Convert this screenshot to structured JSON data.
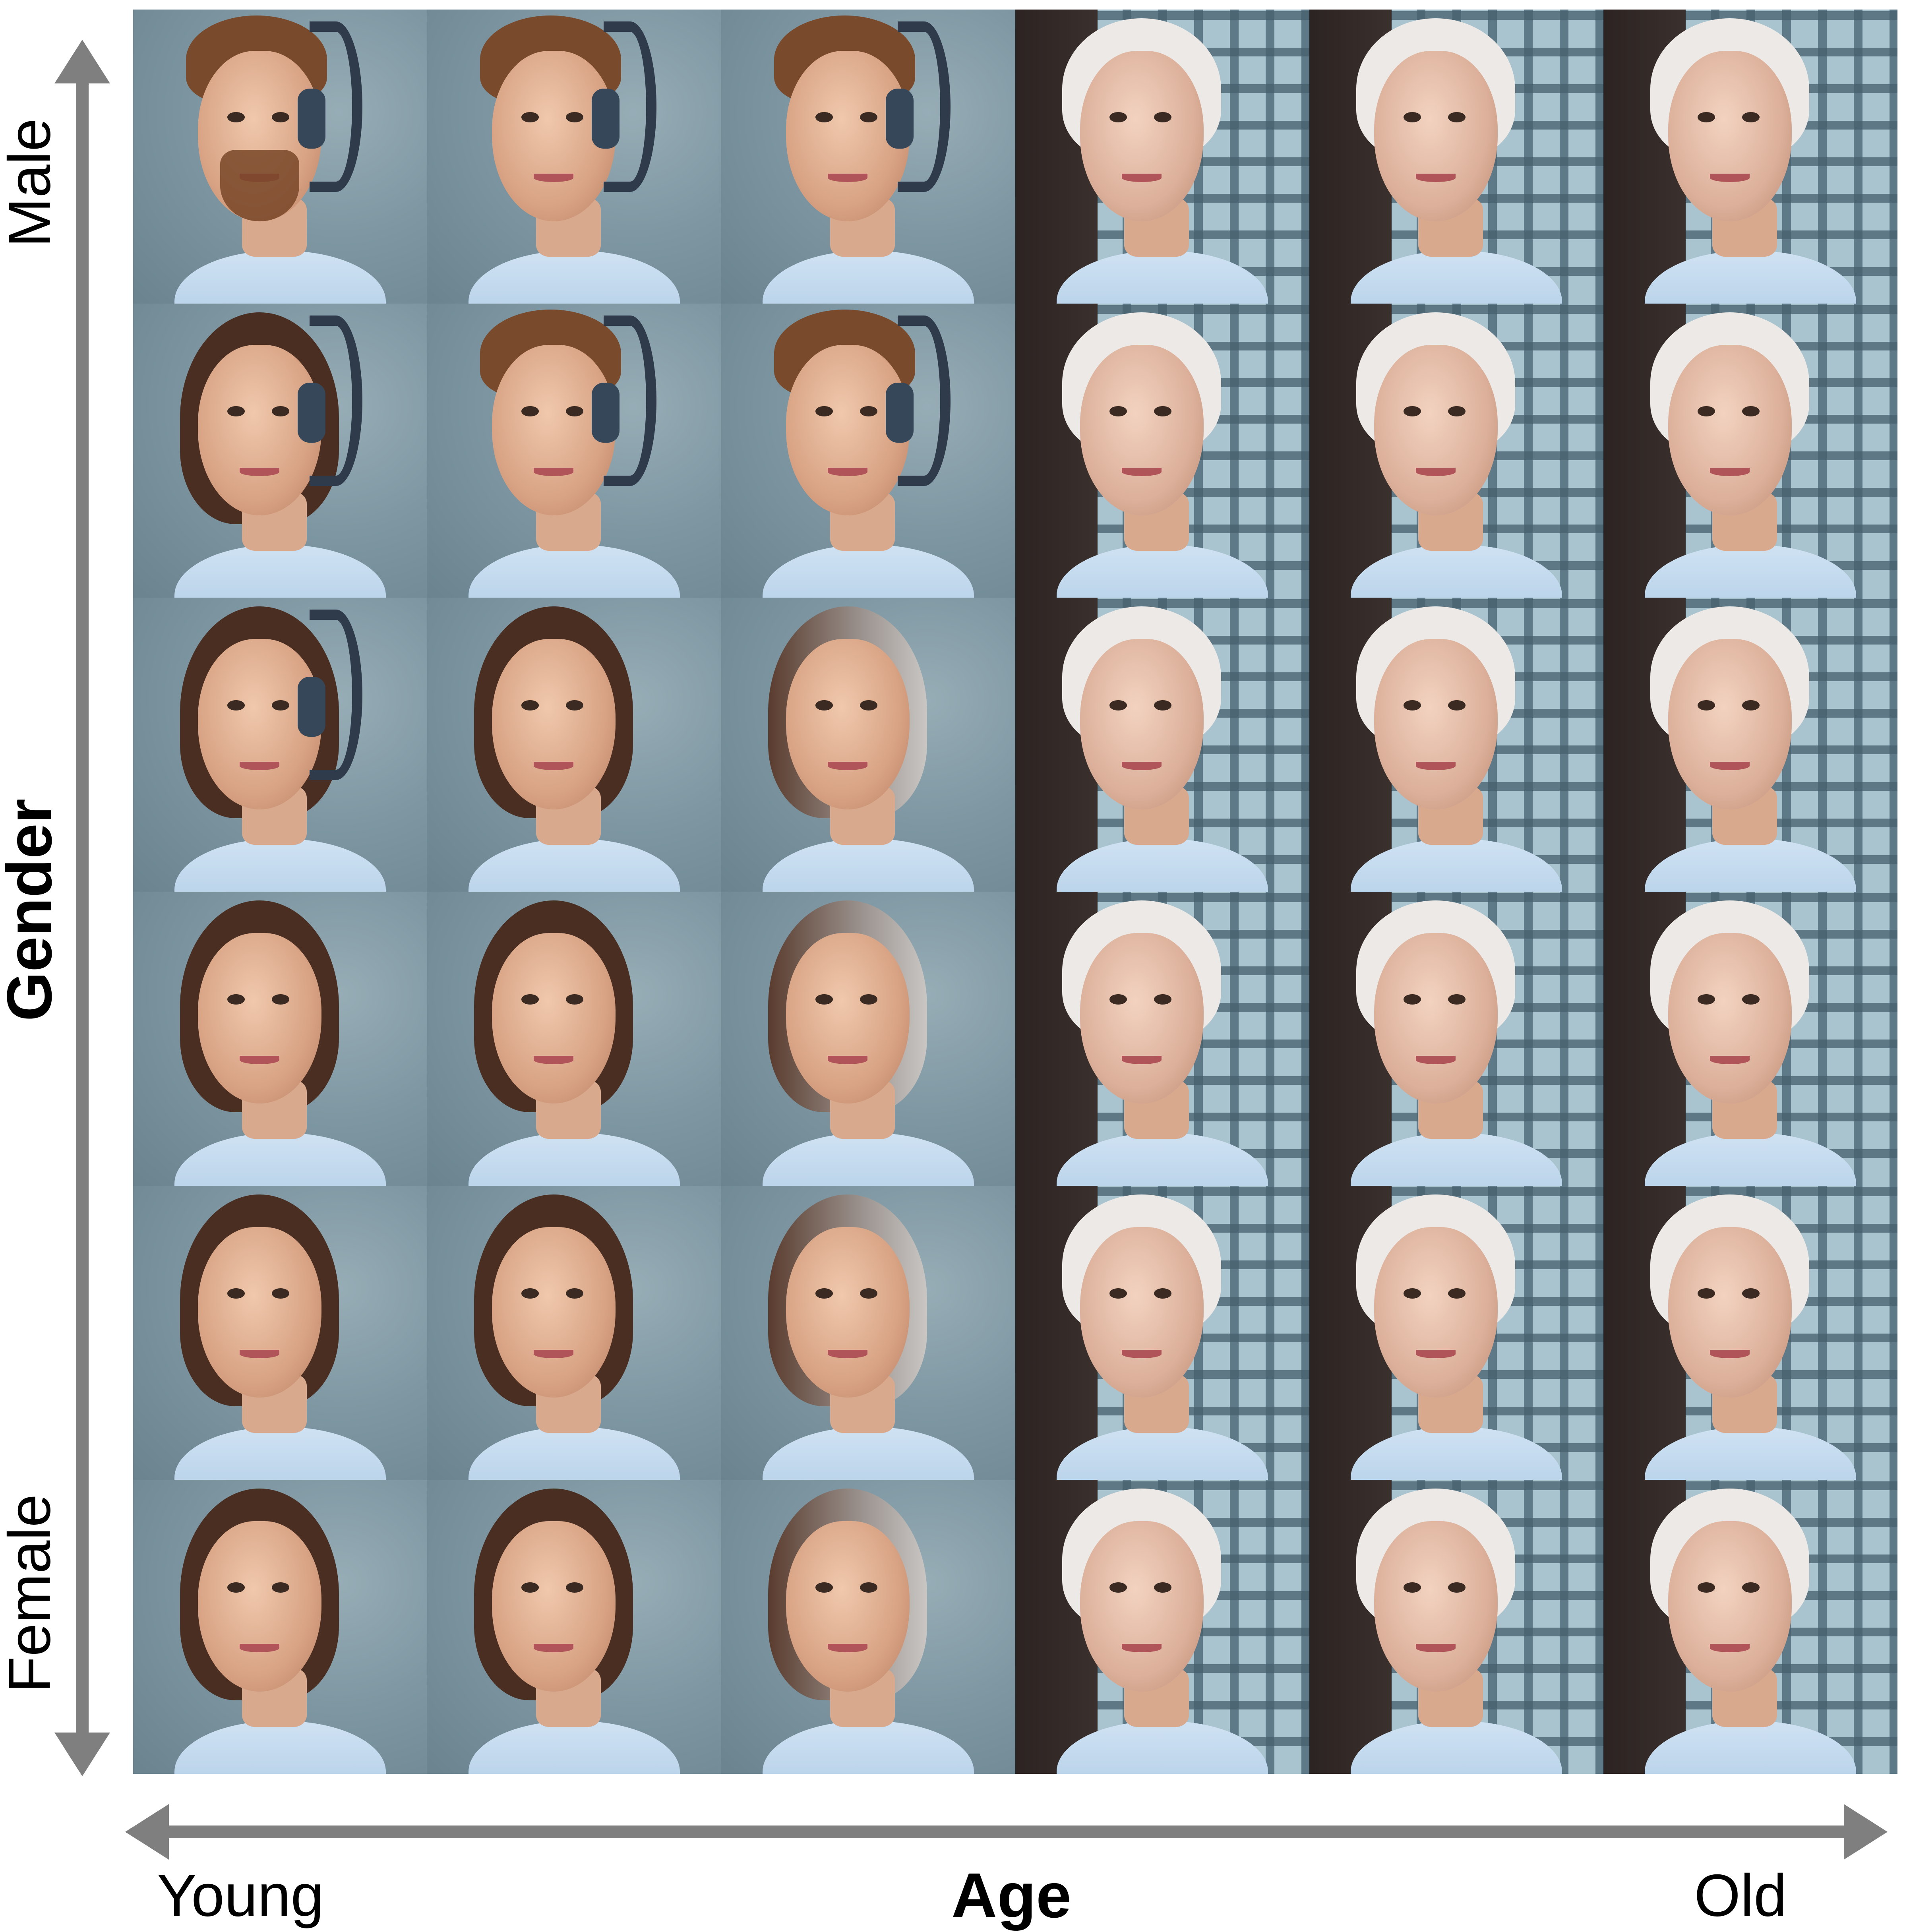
{
  "axes": {
    "vertical": {
      "title": "Gender",
      "top_label": "Male",
      "bottom_label": "Female"
    },
    "horizontal": {
      "title": "Age",
      "left_label": "Young",
      "right_label": "Old"
    }
  },
  "colors": {
    "arrow": "#7f7f7f",
    "text": "#000000",
    "background": "#ffffff"
  },
  "grid": {
    "rows": 6,
    "columns": 6
  }
}
